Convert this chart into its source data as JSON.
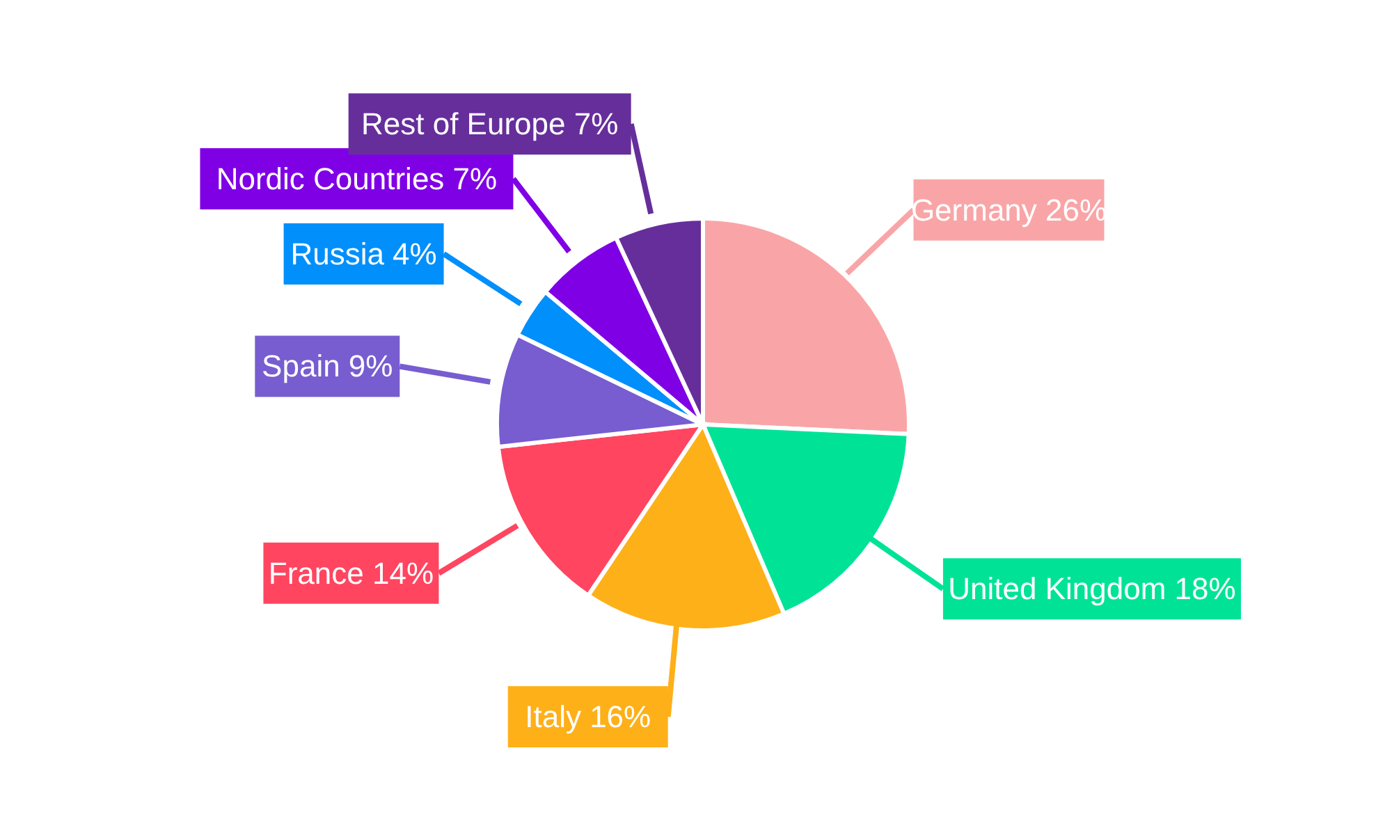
{
  "chart_data": {
    "type": "pie",
    "categories": [
      "Germany",
      "United Kingdom",
      "Italy",
      "France",
      "Spain",
      "Russia",
      "Nordic Countries",
      "Rest of Europe"
    ],
    "values": [
      26,
      18,
      16,
      14,
      9,
      4,
      7,
      7
    ],
    "value_labels": [
      "26%",
      "18%",
      "16%",
      "14%",
      "9%",
      "4%",
      "7%",
      "7%"
    ],
    "colors": [
      "#f9a5a7",
      "#00e396",
      "#feb019",
      "#ff4560",
      "#775dd0",
      "#008ffb",
      "#8000e6",
      "#662e9b"
    ],
    "legend": false
  }
}
